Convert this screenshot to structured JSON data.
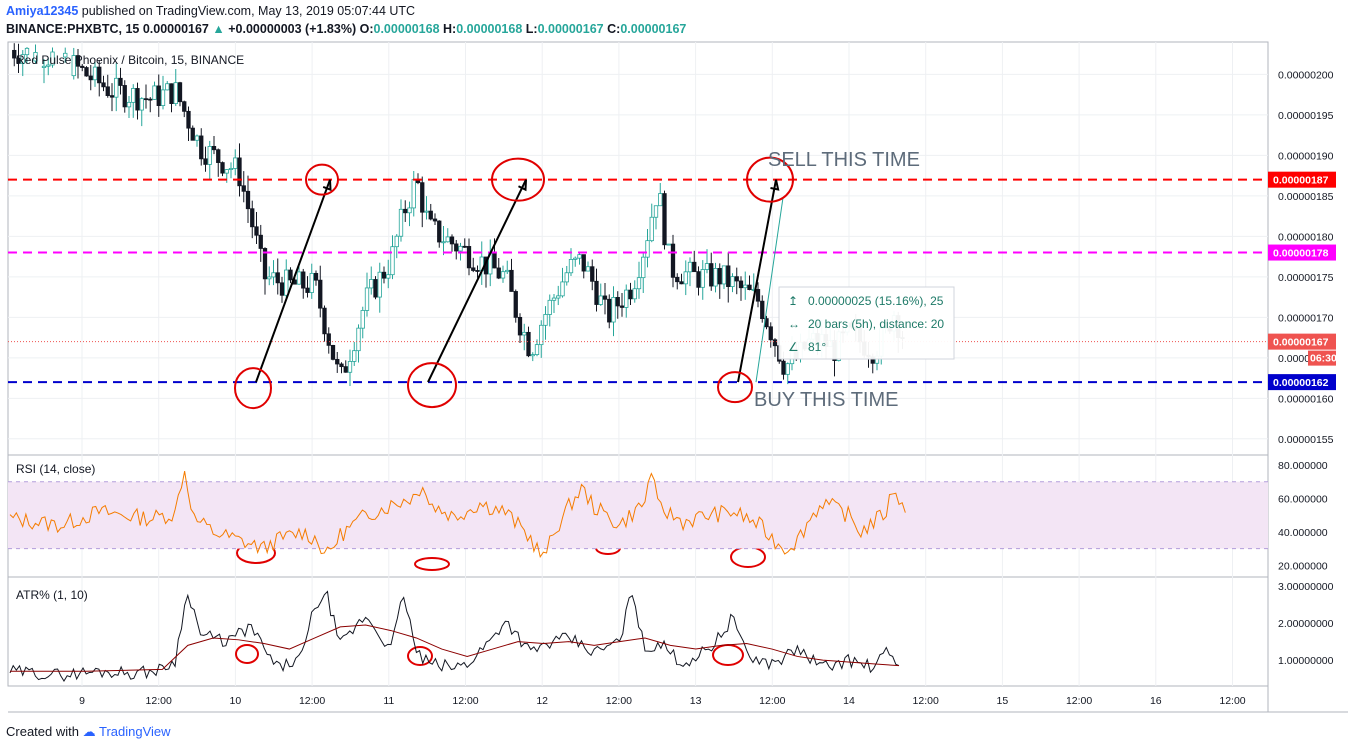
{
  "header": {
    "user": "Amiya12345",
    "published": "published on TradingView.com, May 13, 2019 05:07:44 UTC",
    "symbol": "BINANCE:PHXBTC, 15",
    "last": "0.00000167",
    "change": "+0.00000003 (+1.83%)",
    "o_label": "O:",
    "o_value": "0.00000168",
    "h_label": "H:",
    "h_value": "0.00000168",
    "l_label": "L:",
    "l_value": "0.00000167",
    "c_label": "C:",
    "c_value": "0.00000167"
  },
  "footer": {
    "created_with": "Created with",
    "brand": "TradingView"
  },
  "colors": {
    "up": "#26a69a",
    "down": "#131722",
    "resistance": "#ff0000",
    "middle": "#ff00ff",
    "support": "#0000cc",
    "annotation": "#e00000",
    "rsi": "#f57c00",
    "rsi_band": "#f3e5f5",
    "atr": "#131722",
    "atr_ma": "#8b0000"
  },
  "chart_data": [
    {
      "type": "candlestick",
      "title": "Red Pulse Phoenix / Bitcoin, 15, BINANCE",
      "ylim": [
        1.53e-06,
        2.04e-06
      ],
      "y_ticks": [
        "0.00000200",
        "0.00000195",
        "0.00000190",
        "0.00000185",
        "0.00000180",
        "0.00000175",
        "0.00000170",
        "0.00000165",
        "0.00000160",
        "0.00000155"
      ],
      "x_ticks": [
        "9",
        "12:00",
        "10",
        "12:00",
        "11",
        "12:00",
        "12",
        "12:00",
        "13",
        "12:00",
        "14",
        "12:00",
        "15",
        "12:00",
        "16",
        "12:00"
      ],
      "price_path": [
        [
          0,
          203
        ],
        [
          4,
          202
        ],
        [
          8,
          198
        ],
        [
          11,
          197
        ],
        [
          13,
          198
        ],
        [
          15,
          191
        ],
        [
          17,
          189
        ],
        [
          18,
          188
        ],
        [
          19,
          182
        ],
        [
          20,
          175
        ],
        [
          22,
          174
        ],
        [
          24,
          174
        ],
        [
          25,
          168
        ],
        [
          26,
          162
        ],
        [
          27,
          167
        ],
        [
          28,
          172
        ],
        [
          30,
          177
        ],
        [
          31,
          183
        ],
        [
          32,
          187
        ],
        [
          33,
          181
        ],
        [
          35,
          179
        ],
        [
          37,
          177
        ],
        [
          39,
          175
        ],
        [
          40,
          170
        ],
        [
          41,
          166
        ],
        [
          42,
          170
        ],
        [
          44,
          176
        ],
        [
          45,
          177
        ],
        [
          46,
          174
        ],
        [
          47,
          170
        ],
        [
          49,
          174
        ],
        [
          50,
          179
        ],
        [
          51,
          186
        ],
        [
          52,
          176
        ],
        [
          54,
          175
        ],
        [
          56,
          175
        ],
        [
          57,
          174
        ],
        [
          59,
          172
        ],
        [
          60,
          168
        ],
        [
          61,
          164
        ],
        [
          62,
          165
        ],
        [
          63,
          167
        ],
        [
          64,
          167
        ],
        [
          65,
          166
        ],
        [
          66,
          168
        ],
        [
          67,
          167
        ],
        [
          68,
          166
        ],
        [
          69,
          168
        ],
        [
          69.5,
          171
        ],
        [
          70.5,
          167
        ]
      ],
      "levels": [
        {
          "value": 1.87e-06,
          "label": "0.00000187",
          "style": "resistance"
        },
        {
          "value": 1.78e-06,
          "label": "0.00000178",
          "style": "middle"
        },
        {
          "value": 1.62e-06,
          "label": "0.00000162",
          "style": "support"
        }
      ],
      "last_price": {
        "value": 1.67e-06,
        "label": "0.00000167",
        "countdown": "06:30"
      },
      "annotations": {
        "sell": "SELL THIS TIME",
        "buy": "BUY THIS TIME"
      },
      "measure": {
        "line1": "0.00000025 (15.16%), 25",
        "line2": "20 bars (5h), distance: 20",
        "line3": "81°"
      }
    },
    {
      "type": "line",
      "title": "RSI (14, close)",
      "ylim": [
        13,
        86
      ],
      "y_ticks": [
        "80.000000",
        "60.000000",
        "40.000000",
        "20.000000"
      ],
      "band": [
        30,
        70
      ],
      "path": [
        [
          0,
          48
        ],
        [
          4,
          44
        ],
        [
          7,
          52
        ],
        [
          9,
          50
        ],
        [
          11,
          48
        ],
        [
          13,
          51
        ],
        [
          13.7,
          78
        ],
        [
          14.5,
          48
        ],
        [
          16,
          40
        ],
        [
          18,
          35
        ],
        [
          20,
          30
        ],
        [
          21,
          35
        ],
        [
          23,
          40
        ],
        [
          24,
          36
        ],
        [
          25,
          26
        ],
        [
          26,
          38
        ],
        [
          28,
          50
        ],
        [
          30,
          56
        ],
        [
          32,
          62
        ],
        [
          32.5,
          70
        ],
        [
          33,
          57
        ],
        [
          35,
          49
        ],
        [
          37,
          57
        ],
        [
          39,
          52
        ],
        [
          41,
          36
        ],
        [
          42,
          24
        ],
        [
          43,
          42
        ],
        [
          44,
          55
        ],
        [
          45,
          66
        ],
        [
          46,
          55
        ],
        [
          48,
          44
        ],
        [
          50,
          58
        ],
        [
          50.5,
          78
        ],
        [
          51,
          55
        ],
        [
          53,
          46
        ],
        [
          55,
          50
        ],
        [
          57,
          52
        ],
        [
          59,
          44
        ],
        [
          60,
          36
        ],
        [
          61,
          30
        ],
        [
          62,
          35
        ],
        [
          63,
          48
        ],
        [
          64,
          58
        ],
        [
          66,
          50
        ],
        [
          67,
          40
        ],
        [
          69,
          52
        ],
        [
          69.6,
          68
        ],
        [
          70,
          60
        ],
        [
          70.5,
          50
        ]
      ]
    },
    {
      "type": "line",
      "title": "ATR% (1, 10)",
      "ylim": [
        0.3,
        3.25
      ],
      "y_ticks": [
        "3.00000000",
        "2.00000000",
        "1.00000000"
      ],
      "series": [
        {
          "path": [
            [
              0,
              0.7
            ],
            [
              4,
              0.6
            ],
            [
              7,
              0.7
            ],
            [
              10,
              0.65
            ],
            [
              12,
              0.75
            ],
            [
              13,
              1.0
            ],
            [
              14,
              2.9
            ],
            [
              15,
              1.7
            ],
            [
              17,
              1.5
            ],
            [
              19,
              1.9
            ],
            [
              20,
              1.3
            ],
            [
              21,
              0.8
            ],
            [
              22,
              0.9
            ],
            [
              23,
              1.1
            ],
            [
              24,
              2.5
            ],
            [
              25,
              2.7
            ],
            [
              26,
              1.4
            ],
            [
              28,
              2.2
            ],
            [
              30,
              1.3
            ],
            [
              31,
              2.8
            ],
            [
              32,
              1.2
            ],
            [
              33,
              0.9
            ],
            [
              35,
              0.8
            ],
            [
              36,
              0.9
            ],
            [
              38,
              1.6
            ],
            [
              39,
              2.1
            ],
            [
              41,
              1.2
            ],
            [
              42,
              1.4
            ],
            [
              44,
              1.6
            ],
            [
              46,
              1.2
            ],
            [
              48,
              1.5
            ],
            [
              49,
              2.9
            ],
            [
              50,
              1.2
            ],
            [
              51,
              1.5
            ],
            [
              53,
              0.9
            ],
            [
              55,
              1.3
            ],
            [
              56,
              1.7
            ],
            [
              57,
              2.2
            ],
            [
              58,
              1.1
            ],
            [
              60,
              0.9
            ],
            [
              62,
              1.3
            ],
            [
              64,
              0.8
            ],
            [
              66,
              1.0
            ],
            [
              68,
              0.8
            ],
            [
              69,
              1.2
            ],
            [
              70,
              0.9
            ]
          ]
        },
        {
          "path": [
            [
              0,
              0.7
            ],
            [
              6,
              0.7
            ],
            [
              12,
              0.75
            ],
            [
              14,
              1.4
            ],
            [
              16,
              1.6
            ],
            [
              18,
              1.55
            ],
            [
              20,
              1.45
            ],
            [
              22,
              1.3
            ],
            [
              24,
              1.6
            ],
            [
              26,
              1.9
            ],
            [
              28,
              1.95
            ],
            [
              30,
              1.8
            ],
            [
              32,
              1.6
            ],
            [
              34,
              1.3
            ],
            [
              36,
              1.1
            ],
            [
              38,
              1.3
            ],
            [
              40,
              1.5
            ],
            [
              42,
              1.45
            ],
            [
              44,
              1.5
            ],
            [
              46,
              1.4
            ],
            [
              48,
              1.5
            ],
            [
              50,
              1.6
            ],
            [
              52,
              1.4
            ],
            [
              54,
              1.3
            ],
            [
              56,
              1.4
            ],
            [
              58,
              1.45
            ],
            [
              60,
              1.3
            ],
            [
              62,
              1.1
            ],
            [
              64,
              1.0
            ],
            [
              66,
              0.95
            ],
            [
              68,
              0.9
            ],
            [
              70,
              0.85
            ]
          ]
        }
      ]
    }
  ]
}
